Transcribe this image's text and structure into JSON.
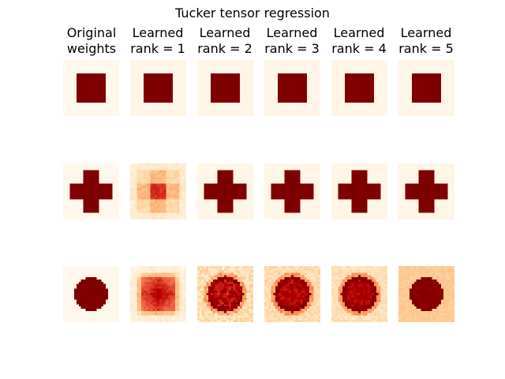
{
  "chart_data": {
    "type": "heatmap",
    "title": "Tucker tensor regression",
    "colormap": "OrRd",
    "columns": [
      {
        "line1": "Original",
        "line2": "weights"
      },
      {
        "line1": "Learned",
        "line2": "rank = 1"
      },
      {
        "line1": "Learned",
        "line2": "rank = 2"
      },
      {
        "line1": "Learned",
        "line2": "rank = 3"
      },
      {
        "line1": "Learned",
        "line2": "rank = 4"
      },
      {
        "line1": "Learned",
        "line2": "rank = 5"
      }
    ],
    "rows": [
      "square",
      "cross",
      "disk"
    ],
    "grid_size": 25,
    "cells": [
      [
        {
          "pattern": "square",
          "noise": 0,
          "bg": 0.0,
          "fg": 1.0
        },
        {
          "pattern": "square",
          "noise": 0,
          "bg": 0.02,
          "fg": 1.0
        },
        {
          "pattern": "square",
          "noise": 0,
          "bg": 0.02,
          "fg": 1.0
        },
        {
          "pattern": "square",
          "noise": 0,
          "bg": 0.02,
          "fg": 1.0
        },
        {
          "pattern": "square",
          "noise": 0,
          "bg": 0.02,
          "fg": 1.0
        },
        {
          "pattern": "square",
          "noise": 0,
          "bg": 0.02,
          "fg": 1.0
        }
      ],
      [
        {
          "pattern": "cross",
          "noise": 0,
          "bg": 0.0,
          "fg": 1.0
        },
        {
          "pattern": "cross_rank1",
          "noise": 0.05,
          "bg": 0.08,
          "fg": 0.75
        },
        {
          "pattern": "cross",
          "noise": 0,
          "bg": 0.02,
          "fg": 1.0
        },
        {
          "pattern": "cross",
          "noise": 0,
          "bg": 0.02,
          "fg": 1.0
        },
        {
          "pattern": "cross",
          "noise": 0,
          "bg": 0.02,
          "fg": 1.0
        },
        {
          "pattern": "cross",
          "noise": 0,
          "bg": 0.02,
          "fg": 1.0
        }
      ],
      [
        {
          "pattern": "disk",
          "noise": 0,
          "bg": 0.0,
          "fg": 1.0
        },
        {
          "pattern": "disk_rank1",
          "noise": 0.05,
          "bg": 0.04,
          "fg": 0.9
        },
        {
          "pattern": "disk_soft",
          "noise": 0.12,
          "bg": 0.18,
          "fg": 0.95
        },
        {
          "pattern": "disk_soft",
          "noise": 0.08,
          "bg": 0.2,
          "fg": 0.97
        },
        {
          "pattern": "disk_soft",
          "noise": 0.06,
          "bg": 0.18,
          "fg": 0.98
        },
        {
          "pattern": "disk",
          "noise": 0.04,
          "bg": 0.3,
          "fg": 0.98
        }
      ]
    ]
  }
}
